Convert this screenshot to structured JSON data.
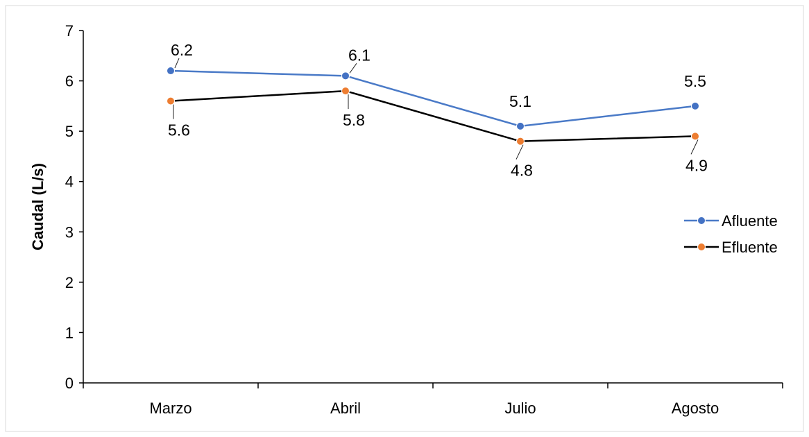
{
  "chart_data": {
    "type": "line",
    "categories": [
      "Marzo",
      "Abril",
      "Julio",
      "Agosto"
    ],
    "ylabel": "Caudal (L/s)",
    "xlabel": "",
    "ylim": [
      0,
      7
    ],
    "yticks": [
      "0",
      "1",
      "2",
      "3",
      "4",
      "5",
      "6",
      "7"
    ],
    "grid": false,
    "legend_position": "right",
    "series": [
      {
        "name": "Afluente",
        "values": [
          6.2,
          6.1,
          5.1,
          5.5
        ],
        "labels": [
          "6.2",
          "6.1",
          "5.1",
          "5.5"
        ],
        "line_color": "#4a7ac7",
        "marker_color": "#4472c4",
        "label_side": "above"
      },
      {
        "name": "Efluente",
        "values": [
          5.6,
          5.8,
          4.8,
          4.9
        ],
        "labels": [
          "5.6",
          "5.8",
          "4.8",
          "4.9"
        ],
        "line_color": "#000000",
        "marker_color": "#ed7d31",
        "label_side": "below"
      }
    ]
  }
}
